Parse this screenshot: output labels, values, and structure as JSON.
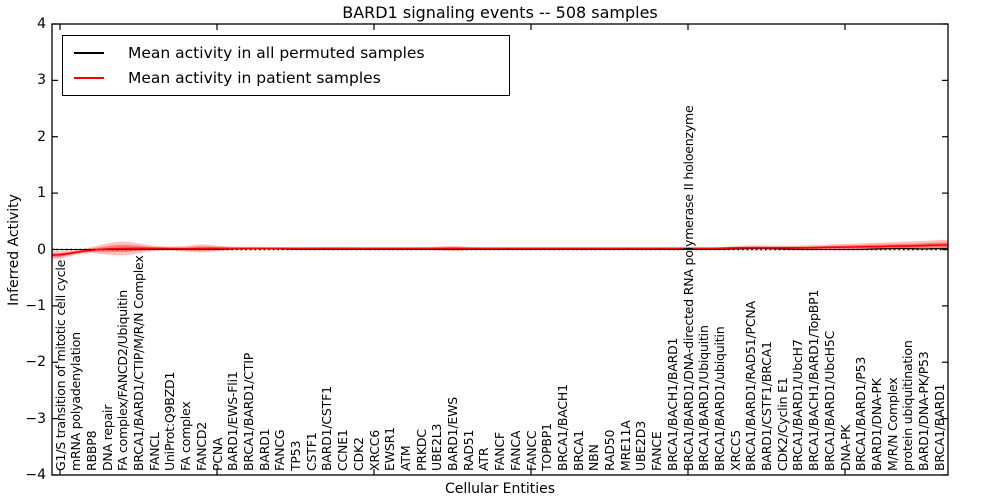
{
  "figure": {
    "title": "BARD1 signaling events -- 508 samples"
  },
  "axes": {
    "xlabel": "Cellular Entities",
    "ylabel": "Inferred Activity",
    "ytick_labels": [
      "4",
      "3",
      "2",
      "1",
      "0",
      "−1",
      "−2",
      "−3",
      "−4"
    ],
    "ylim": [
      -4,
      4
    ]
  },
  "legend": {
    "items": [
      {
        "label": "Mean activity in all permuted samples",
        "color": "#000000"
      },
      {
        "label": "Mean activity in patient samples",
        "color": "#ff0000"
      }
    ]
  },
  "colors": {
    "permuted_line": "#000000",
    "patient_line": "#ff0000",
    "patient_band": "#ff0000",
    "zero_line": "#000000",
    "frame": "#000000"
  },
  "chart_data": {
    "type": "line",
    "title": "BARD1 signaling events -- 508 samples",
    "xlabel": "Cellular Entities",
    "ylabel": "Inferred Activity",
    "ylim": [
      -4,
      4
    ],
    "grid": false,
    "legend_position": "upper left",
    "zero_line": {
      "y": 0,
      "style": "dotted",
      "color": "#000000"
    },
    "x_major_tick_indices": [
      0,
      10,
      20,
      30,
      40,
      50
    ],
    "categories": [
      "G1/S transition of mitotic cell cycle",
      "mRNA polyadenylation",
      "RBBP8",
      "DNA repair",
      "FA complex/FANCD2/Ubiquitin",
      "BRCA1/BARD1/CTIP/M/R/N Complex",
      "FANCL",
      "UniProt:Q9BZD1",
      "FA complex",
      "FANCD2",
      "PCNA",
      "BARD1/EWS-Fli1",
      "BRCA1/BARD1/CTIP",
      "BARD1",
      "FANCG",
      "TP53",
      "CSTF1",
      "BARD1/CSTF1",
      "CCNE1",
      "CDK2",
      "XRCC6",
      "EWSR1",
      "ATM",
      "PRKDC",
      "UBE2L3",
      "BARD1/EWS",
      "RAD51",
      "ATR",
      "FANCF",
      "FANCA",
      "FANCC",
      "TOPBP1",
      "BRCA1/BACH1",
      "BRCA1",
      "NBN",
      "RAD50",
      "MRE11A",
      "UBE2D3",
      "FANCE",
      "BRCA1/BACH1/BARD1",
      "BRCA1/BARD1/DNA-directed RNA polymerase II holoenzyme",
      "BRCA1/BARD1/Ubiquitin",
      "BRCA1/BARD1/ubiquitin",
      "XRCC5",
      "BRCA1/BARD1/RAD51/PCNA",
      "BARD1/CSTF1/BRCA1",
      "CDK2/Cyclin E1",
      "BRCA1/BARD1/UbcH7",
      "BRCA1/BACH1/BARD1/TopBP1",
      "BRCA1/BARD1/UbcH5C",
      "DNA-PK",
      "BRCA1/BARD1/P53",
      "BARD1/DNA-PK",
      "M/R/N Complex",
      "protein ubiquitination",
      "BARD1/DNA-PK/P53",
      "BRCA1/BARD1"
    ],
    "series": [
      {
        "name": "Mean activity in all permuted samples",
        "color": "#000000",
        "style": "solid",
        "values": [
          0,
          0,
          0,
          0,
          0,
          0,
          0,
          0,
          0,
          0,
          0,
          0.01,
          0.02,
          0.02,
          0.01,
          0,
          0,
          0,
          0,
          0,
          0,
          0,
          0,
          0,
          0,
          0,
          0,
          0,
          0,
          0,
          0,
          0,
          0,
          0,
          0,
          0,
          0,
          0,
          0,
          0,
          0,
          0,
          0,
          0.01,
          0.02,
          0.02,
          0.01,
          0,
          0,
          0,
          0,
          0,
          0.01,
          0.02,
          0.02,
          0.01,
          0.02
        ]
      },
      {
        "name": "Mean activity in patient samples",
        "color": "#ff0000",
        "style": "solid",
        "values": [
          -0.1,
          -0.05,
          -0.01,
          0.01,
          0.02,
          0.02,
          0.02,
          0.02,
          0.01,
          0.02,
          0.02,
          0.02,
          0.02,
          0.02,
          0.02,
          0.02,
          0.02,
          0.02,
          0.02,
          0.02,
          0.02,
          0.02,
          0.02,
          0.02,
          0.02,
          0.02,
          0.02,
          0.02,
          0.02,
          0.02,
          0.02,
          0.02,
          0.02,
          0.02,
          0.02,
          0.02,
          0.02,
          0.02,
          0.02,
          0.02,
          0.02,
          0.02,
          0.02,
          0.03,
          0.03,
          0.03,
          0.03,
          0.03,
          0.03,
          0.04,
          0.04,
          0.05,
          0.05,
          0.06,
          0.06,
          0.07,
          0.08
        ],
        "band_half_width": [
          0.07,
          0.04,
          0.05,
          0.1,
          0.13,
          0.09,
          0.04,
          0.03,
          0.05,
          0.08,
          0.05,
          0.03,
          0.03,
          0.03,
          0.02,
          0.02,
          0.02,
          0.03,
          0.03,
          0.02,
          0.02,
          0.02,
          0.02,
          0.02,
          0.03,
          0.05,
          0.03,
          0.02,
          0.02,
          0.02,
          0.02,
          0.02,
          0.02,
          0.02,
          0.02,
          0.02,
          0.02,
          0.02,
          0.02,
          0.02,
          0.02,
          0.02,
          0.02,
          0.03,
          0.05,
          0.04,
          0.04,
          0.04,
          0.05,
          0.05,
          0.06,
          0.06,
          0.07,
          0.07,
          0.08,
          0.08,
          0.09
        ]
      }
    ]
  }
}
